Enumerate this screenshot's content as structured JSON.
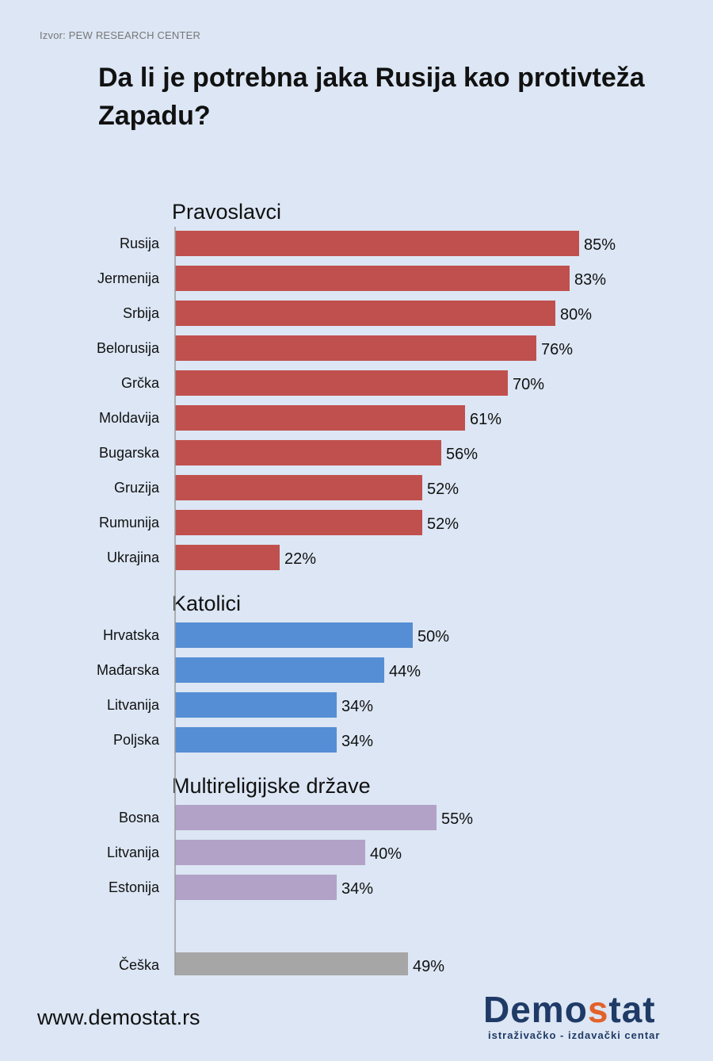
{
  "source": "Izvor: PEW RESEARCH CENTER",
  "title": "Da li je potrebna jaka Rusija kao protivteža Zapadu?",
  "footer": {
    "url": "www.demostat.rs",
    "logo_parts": [
      "Demo",
      "s",
      "tat"
    ],
    "logo_tagline": "istraživačko - izdavački centar"
  },
  "colors": {
    "orthodox": "#c0504d",
    "catholic": "#558ed5",
    "multireligious": "#b3a2c7",
    "other": "#a6a6a6"
  },
  "chart_data": {
    "type": "bar",
    "orientation": "horizontal",
    "value_format": "percent",
    "xlim": [
      0,
      100
    ],
    "groups": [
      {
        "name": "Pravoslavci",
        "color_key": "orthodox",
        "categories": [
          "Rusija",
          "Jermenija",
          "Srbija",
          "Belorusija",
          "Grčka",
          "Moldavija",
          "Bugarska",
          "Gruzija",
          "Rumunija",
          "Ukrajina"
        ],
        "values": [
          85,
          83,
          80,
          76,
          70,
          61,
          56,
          52,
          52,
          22
        ]
      },
      {
        "name": "Katolici",
        "color_key": "catholic",
        "categories": [
          "Hrvatska",
          "Mađarska",
          "Litvanija",
          "Poljska"
        ],
        "values": [
          50,
          44,
          34,
          34
        ]
      },
      {
        "name": "Multireligijske države",
        "color_key": "multireligious",
        "categories": [
          "Bosna",
          "Litvanija",
          "Estonija"
        ],
        "values": [
          55,
          40,
          34
        ]
      },
      {
        "name": "",
        "color_key": "other",
        "categories": [
          "Češka"
        ],
        "values": [
          49
        ]
      }
    ]
  }
}
